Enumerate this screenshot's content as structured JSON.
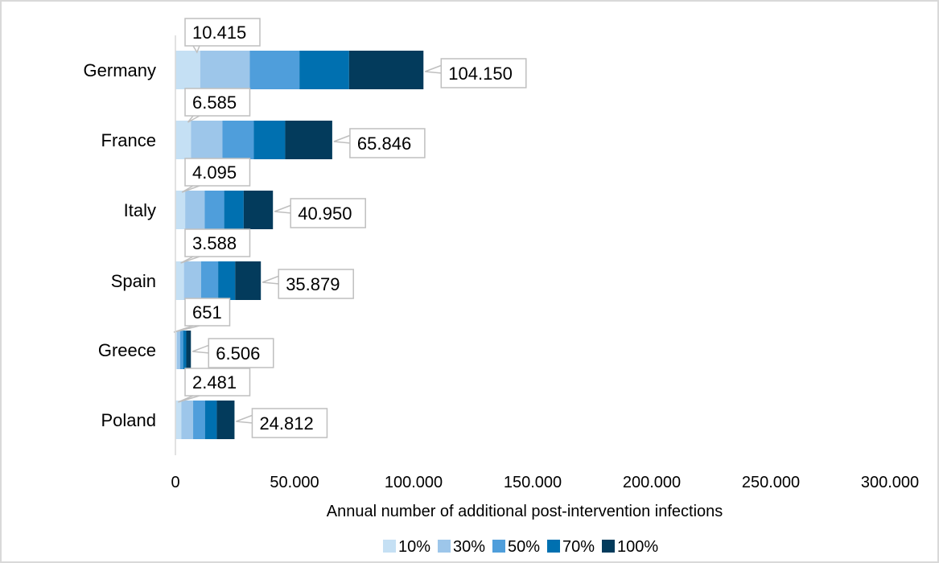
{
  "chart_data": {
    "type": "bar",
    "orientation": "horizontal",
    "stacked": true,
    "categories": [
      "Germany",
      "France",
      "Italy",
      "Spain",
      "Greece",
      "Poland"
    ],
    "series": [
      {
        "name": "10%",
        "color": "#c5e0f4",
        "values": [
          10415,
          6585,
          4095,
          3588,
          651,
          2481
        ]
      },
      {
        "name": "30%",
        "color": "#9dc6ea",
        "values": [
          31245,
          19754,
          12285,
          10764,
          1952,
          7444
        ]
      },
      {
        "name": "50%",
        "color": "#4f9edb",
        "values": [
          52075,
          32923,
          20475,
          17940,
          3253,
          12406
        ]
      },
      {
        "name": "70%",
        "color": "#0070b0",
        "values": [
          72905,
          46092,
          28665,
          25115,
          4554,
          17368
        ]
      },
      {
        "name": "100%",
        "color": "#033b5c",
        "values": [
          104150,
          65846,
          40950,
          35879,
          6506,
          24812
        ]
      }
    ],
    "data_labels": {
      "first": [
        "10.415",
        "6.585",
        "4.095",
        "3.588",
        "651",
        "2.481"
      ],
      "last": [
        "104.150",
        "65.846",
        "40.950",
        "35.879",
        "6.506",
        "24.812"
      ]
    },
    "xlim": [
      0,
      300000
    ],
    "xticks": [
      0,
      50000,
      100000,
      150000,
      200000,
      250000,
      300000
    ],
    "xtick_labels": [
      "0",
      "50.000",
      "100.000",
      "150.000",
      "200.000",
      "250.000",
      "300.000"
    ],
    "xlabel": "Annual number of additional post-intervention infections",
    "title": "",
    "legend_position": "bottom",
    "grid": false
  }
}
